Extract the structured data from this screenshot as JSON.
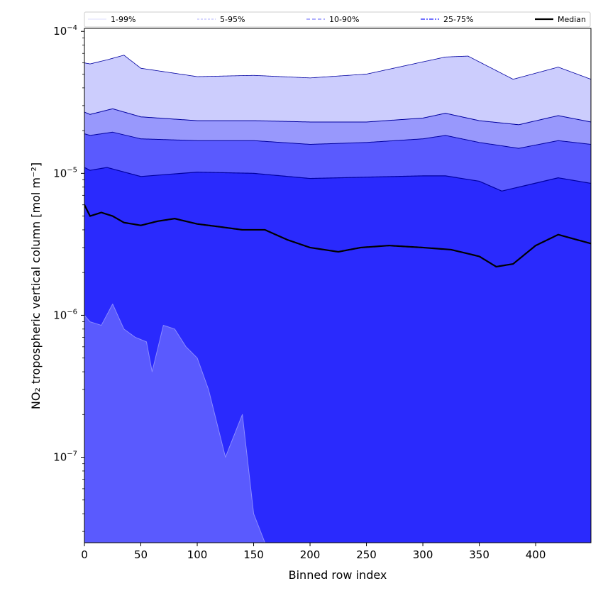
{
  "chart_data": {
    "type": "area",
    "xlabel": "Binned row index",
    "ylabel": "NO₂ tropospheric vertical column [mol m⁻²]",
    "xlim": [
      0,
      449
    ],
    "ylim": [
      2.5e-08,
      0.000105
    ],
    "y_scale": "log",
    "x_ticks": [
      0,
      50,
      100,
      150,
      200,
      250,
      300,
      350,
      400
    ],
    "x_tick_labels": [
      "0",
      "50",
      "100",
      "150",
      "200",
      "250",
      "300",
      "350",
      "400"
    ],
    "y_ticks": [
      1e-07,
      1e-06,
      1e-05,
      0.0001
    ],
    "y_tick_labels": [
      {
        "base": "10",
        "exp": "−7"
      },
      {
        "base": "10",
        "exp": "−6"
      },
      {
        "base": "10",
        "exp": "−5"
      },
      {
        "base": "10",
        "exp": "−4"
      }
    ],
    "legend": [
      "1-99%",
      "5-95%",
      "10-90%",
      "25-75%",
      "Median"
    ],
    "legend_position": "top",
    "colors": {
      "band_1_99": "#5a5afe",
      "band_5_95": "#cccdfd",
      "band_10_90": "#9898fc",
      "band_25_75": "#5a5afe",
      "band_inner": "#2a2afd",
      "edge": "#0000a0",
      "median": "#000000"
    },
    "series": [
      {
        "name": "99%",
        "x": [
          0,
          5,
          20,
          35,
          50,
          100,
          150,
          200,
          250,
          300,
          320,
          340,
          380,
          420,
          449
        ],
        "values": [
          6e-05,
          5.9e-05,
          6.3e-05,
          6.8e-05,
          5.5e-05,
          4.8e-05,
          4.9e-05,
          4.7e-05,
          5e-05,
          6.1e-05,
          6.6e-05,
          6.7e-05,
          4.6e-05,
          5.6e-05,
          4.6e-05
        ]
      },
      {
        "name": "95%",
        "x": [
          0,
          5,
          25,
          50,
          100,
          150,
          200,
          250,
          300,
          320,
          350,
          385,
          420,
          449
        ],
        "values": [
          2.7e-05,
          2.6e-05,
          2.85e-05,
          2.5e-05,
          2.35e-05,
          2.35e-05,
          2.3e-05,
          2.3e-05,
          2.45e-05,
          2.65e-05,
          2.35e-05,
          2.2e-05,
          2.55e-05,
          2.3e-05
        ]
      },
      {
        "name": "90%",
        "x": [
          0,
          5,
          25,
          50,
          100,
          150,
          200,
          250,
          300,
          320,
          350,
          385,
          420,
          449
        ],
        "values": [
          1.9e-05,
          1.85e-05,
          1.95e-05,
          1.75e-05,
          1.7e-05,
          1.7e-05,
          1.6e-05,
          1.65e-05,
          1.75e-05,
          1.85e-05,
          1.65e-05,
          1.5e-05,
          1.7e-05,
          1.6e-05
        ]
      },
      {
        "name": "75%",
        "x": [
          0,
          5,
          20,
          50,
          100,
          150,
          200,
          250,
          300,
          320,
          350,
          370,
          420,
          449
        ],
        "values": [
          1.1e-05,
          1.05e-05,
          1.1e-05,
          9.5e-06,
          1.02e-05,
          1e-05,
          9.2e-06,
          9.4e-06,
          9.6e-06,
          9.6e-06,
          8.8e-06,
          7.5e-06,
          9.3e-06,
          8.5e-06
        ]
      },
      {
        "name": "Median",
        "x": [
          0,
          5,
          15,
          25,
          35,
          50,
          65,
          80,
          100,
          120,
          140,
          160,
          180,
          200,
          225,
          245,
          270,
          300,
          325,
          350,
          365,
          380,
          400,
          420,
          449
        ],
        "values": [
          6e-06,
          5e-06,
          5.3e-06,
          5e-06,
          4.5e-06,
          4.3e-06,
          4.6e-06,
          4.8e-06,
          4.4e-06,
          4.2e-06,
          4e-06,
          4e-06,
          3.4e-06,
          3e-06,
          2.8e-06,
          3e-06,
          3.1e-06,
          3e-06,
          2.9e-06,
          2.6e-06,
          2.2e-06,
          2.3e-06,
          3.1e-06,
          3.7e-06,
          3.2e-06
        ]
      },
      {
        "name": "1%",
        "x": [
          0,
          5,
          15,
          25,
          35,
          45,
          55,
          60,
          70,
          80,
          90,
          100,
          110,
          125,
          140,
          150,
          160,
          170,
          180,
          449
        ],
        "values": [
          1e-06,
          9e-07,
          8.5e-07,
          1.2e-06,
          8e-07,
          7e-07,
          6.5e-07,
          4e-07,
          8.5e-07,
          8e-07,
          6e-07,
          5e-07,
          3e-07,
          1e-07,
          2e-07,
          4e-08,
          2.5e-08,
          2.5e-08,
          2.5e-08,
          2.5e-08
        ]
      }
    ]
  }
}
